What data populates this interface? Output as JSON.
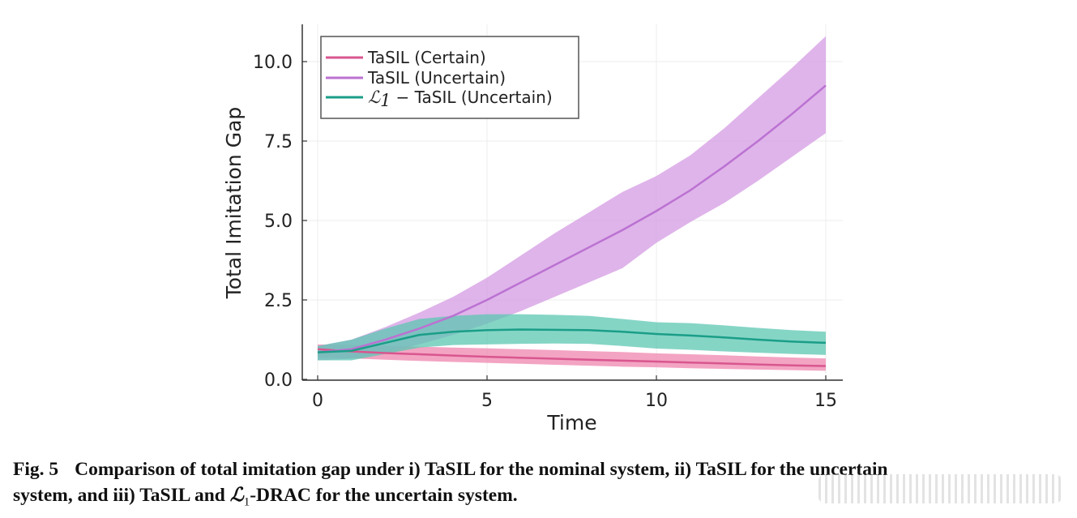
{
  "chart_data": {
    "type": "line",
    "title": "",
    "xlabel": "Time",
    "ylabel": "Total Imitation Gap",
    "xlim": [
      -0.3,
      15.5
    ],
    "ylim": [
      0,
      11.2
    ],
    "xticks": [
      0,
      5,
      10,
      15
    ],
    "xtick_labels": [
      "0",
      "5",
      "10",
      "15"
    ],
    "yticks": [
      0,
      2.5,
      5,
      7.5,
      10
    ],
    "ytick_labels": [
      "0.0",
      "2.5",
      "5.0",
      "7.5",
      "10.0"
    ],
    "grid": true,
    "legend_position": "top-left",
    "x": [
      0,
      1,
      2,
      3,
      4,
      5,
      6,
      7,
      8,
      9,
      10,
      11,
      12,
      13,
      14,
      15
    ],
    "series": [
      {
        "name": "TaSIL (Certain)",
        "legend_label": "TaSIL (Certain)",
        "color": "#d9568f",
        "band_color": "#ef86ad",
        "mean": [
          0.95,
          0.88,
          0.83,
          0.79,
          0.75,
          0.71,
          0.68,
          0.65,
          0.62,
          0.59,
          0.56,
          0.53,
          0.5,
          0.47,
          0.44,
          0.42
        ],
        "lower": [
          0.7,
          0.66,
          0.62,
          0.58,
          0.55,
          0.52,
          0.49,
          0.46,
          0.43,
          0.4,
          0.38,
          0.35,
          0.33,
          0.31,
          0.29,
          0.27
        ],
        "upper": [
          1.1,
          1.08,
          1.06,
          1.03,
          1.0,
          0.98,
          0.95,
          0.92,
          0.89,
          0.86,
          0.82,
          0.79,
          0.76,
          0.72,
          0.69,
          0.66
        ]
      },
      {
        "name": "TaSIL (Uncertain)",
        "legend_label": "TaSIL (Uncertain)",
        "color": "#bb72d2",
        "band_color": "#d49be3",
        "mean": [
          0.85,
          0.95,
          1.25,
          1.6,
          2.0,
          2.5,
          3.05,
          3.6,
          4.15,
          4.7,
          5.3,
          5.95,
          6.7,
          7.5,
          8.35,
          9.25
        ],
        "lower": [
          0.6,
          0.65,
          0.85,
          1.1,
          1.4,
          1.75,
          2.15,
          2.6,
          3.05,
          3.5,
          4.3,
          4.95,
          5.55,
          6.25,
          7.0,
          7.75
        ],
        "upper": [
          1.05,
          1.25,
          1.65,
          2.1,
          2.6,
          3.2,
          3.9,
          4.6,
          5.25,
          5.9,
          6.4,
          7.05,
          7.9,
          8.85,
          9.8,
          10.8
        ]
      },
      {
        "name": "L1 - TaSIL (Uncertain)",
        "legend_label_math": "ℒ",
        "legend_label_sub": "1",
        "legend_label_rest": "− TaSIL (Uncertain)",
        "color": "#1a9e88",
        "band_color": "#5cc7b2",
        "mean": [
          0.85,
          0.9,
          1.15,
          1.4,
          1.5,
          1.55,
          1.57,
          1.56,
          1.55,
          1.5,
          1.43,
          1.38,
          1.32,
          1.25,
          1.19,
          1.15
        ],
        "lower": [
          0.6,
          0.6,
          0.8,
          1.0,
          1.08,
          1.1,
          1.12,
          1.13,
          1.12,
          1.05,
          0.97,
          0.93,
          0.88,
          0.84,
          0.8,
          0.77
        ],
        "upper": [
          1.05,
          1.25,
          1.6,
          1.9,
          2.0,
          2.05,
          2.05,
          2.03,
          2.0,
          1.9,
          1.8,
          1.77,
          1.7,
          1.62,
          1.55,
          1.5
        ]
      }
    ]
  },
  "caption": {
    "fig_number": "Fig. 5",
    "line1": "Comparison of total imitation gap under i) TaSIL for the nominal system, ii) TaSIL for the uncertain",
    "line2_pre": "system, and iii) TaSIL and ",
    "line2_math": "ℒ",
    "line2_sub": "1",
    "line2_post": "-DRAC for the uncertain system."
  }
}
